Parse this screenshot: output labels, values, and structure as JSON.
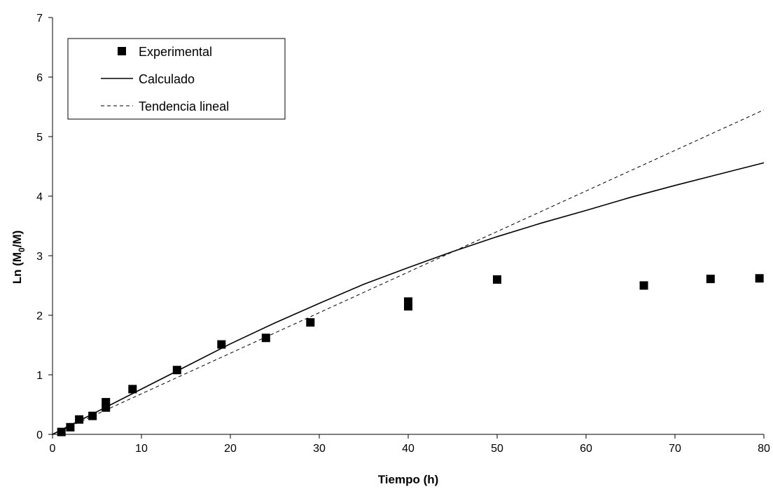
{
  "chart_data": {
    "type": "scatter",
    "title": "",
    "xlabel": "Tiempo (h)",
    "ylabel": {
      "prefix": "Ln (M",
      "sub": "0",
      "suffix": "/M)"
    },
    "xlim": [
      0,
      80
    ],
    "ylim": [
      0,
      7
    ],
    "xticks": [
      0,
      10,
      20,
      30,
      40,
      50,
      60,
      70,
      80
    ],
    "yticks": [
      0,
      1,
      2,
      3,
      4,
      5,
      6,
      7
    ],
    "grid": false,
    "legend_position": "top-left",
    "series": [
      {
        "name": "Experimental",
        "kind": "markers",
        "marker": "square",
        "color": "#000000",
        "points": [
          [
            1,
            0.04
          ],
          [
            2,
            0.12
          ],
          [
            3,
            0.25
          ],
          [
            4.5,
            0.31
          ],
          [
            6,
            0.54
          ],
          [
            6,
            0.45
          ],
          [
            9,
            0.76
          ],
          [
            14,
            1.08
          ],
          [
            19,
            1.51
          ],
          [
            24,
            1.62
          ],
          [
            29,
            1.88
          ],
          [
            40,
            2.23
          ],
          [
            40,
            2.15
          ],
          [
            50,
            2.6
          ],
          [
            66.5,
            2.5
          ],
          [
            74,
            2.61
          ],
          [
            79.5,
            2.62
          ]
        ]
      },
      {
        "name": "Calculado",
        "kind": "line",
        "style": "solid",
        "color": "#000000",
        "points": [
          [
            0,
            0
          ],
          [
            5,
            0.38
          ],
          [
            10,
            0.76
          ],
          [
            15,
            1.14
          ],
          [
            20,
            1.52
          ],
          [
            25,
            1.87
          ],
          [
            30,
            2.2
          ],
          [
            35,
            2.52
          ],
          [
            40,
            2.8
          ],
          [
            45,
            3.07
          ],
          [
            50,
            3.32
          ],
          [
            55,
            3.55
          ],
          [
            60,
            3.76
          ],
          [
            65,
            3.98
          ],
          [
            70,
            4.18
          ],
          [
            75,
            4.37
          ],
          [
            80,
            4.56
          ]
        ]
      },
      {
        "name": "Tendencia lineal",
        "kind": "line",
        "style": "dashed",
        "color": "#000000",
        "points": [
          [
            0,
            0
          ],
          [
            80,
            5.45
          ]
        ]
      }
    ]
  }
}
